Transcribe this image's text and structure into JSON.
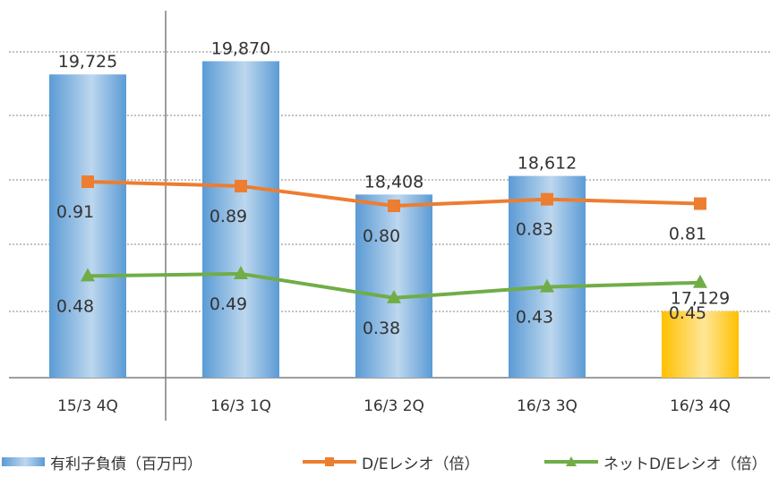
{
  "chart_data": {
    "type": "bar",
    "categories": [
      "15/3 4Q",
      "16/3 1Q",
      "16/3 2Q",
      "16/3 3Q",
      "16/3 4Q"
    ],
    "bar_series": {
      "name": "有利子負債（百万円）",
      "values": [
        19725,
        19870,
        18408,
        18612,
        17129
      ],
      "labels": [
        "19,725",
        "19,870",
        "18,408",
        "18,612",
        "17,129"
      ],
      "color": "#5b9bd5",
      "highlight_color": "#ffc000",
      "highlight_index": 4
    },
    "line_series": [
      {
        "name": "D/Eレシオ（倍）",
        "values": [
          0.91,
          0.89,
          0.8,
          0.83,
          0.81
        ],
        "labels": [
          "0.91",
          "0.89",
          "0.80",
          "0.83",
          "0.81"
        ],
        "color": "#ed7d31",
        "marker": "square"
      },
      {
        "name": "ネットD/Eレシオ（倍）",
        "values": [
          0.48,
          0.49,
          0.38,
          0.43,
          0.45
        ],
        "labels": [
          "0.48",
          "0.49",
          "0.38",
          "0.43",
          "0.45"
        ],
        "color": "#70ad47",
        "marker": "triangle"
      }
    ],
    "grid": true,
    "legend_position": "bottom"
  }
}
